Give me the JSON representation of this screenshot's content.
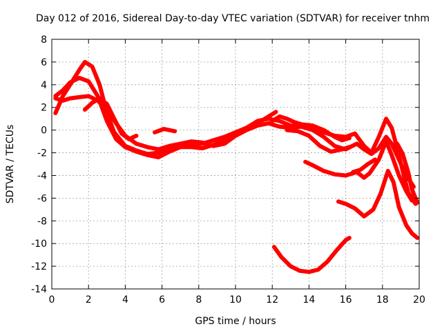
{
  "chart_data": {
    "type": "scatter",
    "title": "Day 012 of 2016, Sidereal Day-to-day VTEC variation (SDTVAR) for receiver tnhm",
    "xlabel": "GPS time / hours",
    "ylabel": "SDTVAR / TECUs",
    "xlim": [
      0,
      20
    ],
    "ylim": [
      -14,
      8
    ],
    "x_ticks": [
      "0",
      "2",
      "4",
      "6",
      "8",
      "10",
      "12",
      "14",
      "16",
      "18",
      "20"
    ],
    "y_ticks": [
      "8",
      "6",
      "4",
      "2",
      "0",
      "-2",
      "-4",
      "-6",
      "-8",
      "-10",
      "-12",
      "-14"
    ],
    "grid": true,
    "marker": "+",
    "color": "#ff0000",
    "series": [
      {
        "name": "track-1",
        "points": [
          [
            0.2,
            1.5
          ],
          [
            0.6,
            3.0
          ],
          [
            1.0,
            4.0
          ],
          [
            1.5,
            5.3
          ],
          [
            1.8,
            6.0
          ],
          [
            2.2,
            5.6
          ],
          [
            2.6,
            4.0
          ],
          [
            3.0,
            1.5
          ],
          [
            3.4,
            -0.2
          ],
          [
            4.0,
            -1.4
          ],
          [
            4.6,
            -1.8
          ],
          [
            5.2,
            -2.1
          ],
          [
            5.8,
            -2.0
          ],
          [
            6.4,
            -1.7
          ],
          [
            7.0,
            -1.4
          ],
          [
            7.6,
            -1.3
          ],
          [
            8.2,
            -1.2
          ],
          [
            8.8,
            -0.9
          ],
          [
            9.4,
            -0.6
          ],
          [
            10.0,
            -0.2
          ],
          [
            10.6,
            0.2
          ],
          [
            11.2,
            0.6
          ],
          [
            11.8,
            1.2
          ],
          [
            12.2,
            1.6
          ]
        ]
      },
      {
        "name": "track-2",
        "points": [
          [
            0.2,
            3.0
          ],
          [
            0.6,
            3.5
          ],
          [
            1.0,
            4.2
          ],
          [
            1.5,
            4.6
          ],
          [
            2.0,
            4.3
          ],
          [
            2.5,
            3.0
          ],
          [
            3.0,
            0.8
          ],
          [
            3.5,
            -0.8
          ],
          [
            4.0,
            -1.5
          ],
          [
            4.6,
            -1.9
          ],
          [
            5.2,
            -2.2
          ],
          [
            5.8,
            -2.4
          ],
          [
            6.4,
            -1.9
          ],
          [
            7.0,
            -1.5
          ],
          [
            7.6,
            -1.5
          ],
          [
            8.2,
            -1.6
          ],
          [
            8.8,
            -1.3
          ],
          [
            9.4,
            -0.9
          ],
          [
            10.0,
            -0.4
          ],
          [
            10.6,
            0.2
          ],
          [
            11.2,
            0.8
          ],
          [
            11.8,
            1.0
          ],
          [
            12.4,
            0.8
          ],
          [
            13.0,
            0.4
          ],
          [
            13.6,
            0.3
          ],
          [
            14.2,
            0.0
          ],
          [
            14.8,
            -0.6
          ],
          [
            15.4,
            -1.4
          ],
          [
            16.0,
            -1.7
          ],
          [
            16.6,
            -1.2
          ],
          [
            17.0,
            -1.7
          ],
          [
            17.4,
            -2.1
          ],
          [
            17.8,
            -1.6
          ],
          [
            18.2,
            -0.6
          ],
          [
            18.5,
            -1.2
          ],
          [
            18.9,
            -2.6
          ],
          [
            19.3,
            -4.0
          ],
          [
            19.7,
            -5.0
          ]
        ]
      },
      {
        "name": "track-3",
        "points": [
          [
            0.2,
            2.8
          ],
          [
            0.6,
            2.6
          ],
          [
            1.0,
            2.8
          ],
          [
            1.5,
            2.9
          ],
          [
            2.0,
            3.0
          ],
          [
            2.5,
            2.6
          ],
          [
            3.0,
            1.8
          ],
          [
            3.5,
            0.6
          ],
          [
            4.0,
            -0.5
          ],
          [
            4.6,
            -1.2
          ],
          [
            5.2,
            -1.5
          ],
          [
            5.8,
            -1.7
          ],
          [
            6.4,
            -1.4
          ],
          [
            7.0,
            -1.2
          ],
          [
            7.6,
            -1.0
          ],
          [
            8.2,
            -1.1
          ],
          [
            8.8,
            -1.4
          ],
          [
            9.4,
            -1.2
          ],
          [
            10.0,
            -0.5
          ],
          [
            10.6,
            0.0
          ],
          [
            11.2,
            0.4
          ],
          [
            11.8,
            0.6
          ],
          [
            12.4,
            0.3
          ],
          [
            13.0,
            0.2
          ],
          [
            13.6,
            0.3
          ],
          [
            14.2,
            0.2
          ],
          [
            14.8,
            -0.2
          ],
          [
            15.4,
            -0.5
          ],
          [
            16.0,
            -0.6
          ],
          [
            16.5,
            -0.3
          ],
          [
            17.0,
            -1.4
          ],
          [
            17.4,
            -2.0
          ],
          [
            17.8,
            -0.6
          ],
          [
            18.2,
            1.0
          ],
          [
            18.5,
            0.2
          ],
          [
            18.8,
            -1.6
          ],
          [
            19.1,
            -3.6
          ],
          [
            19.4,
            -5.5
          ],
          [
            19.8,
            -6.5
          ]
        ]
      },
      {
        "name": "track-4",
        "points": [
          [
            1.8,
            1.8
          ],
          [
            2.2,
            2.4
          ],
          [
            2.6,
            2.8
          ],
          [
            3.0,
            2.3
          ],
          [
            3.4,
            1.0
          ],
          [
            3.8,
            -0.3
          ],
          [
            4.2,
            -0.8
          ],
          [
            4.6,
            -0.5
          ]
        ]
      },
      {
        "name": "track-5",
        "points": [
          [
            5.6,
            -0.2
          ],
          [
            6.1,
            0.1
          ],
          [
            6.7,
            -0.1
          ]
        ]
      },
      {
        "name": "track-6",
        "points": [
          [
            12.0,
            0.8
          ],
          [
            12.4,
            1.2
          ],
          [
            12.8,
            1.0
          ],
          [
            13.2,
            0.7
          ],
          [
            13.6,
            0.5
          ],
          [
            14.2,
            0.4
          ],
          [
            14.8,
            0.0
          ],
          [
            15.4,
            -0.6
          ],
          [
            15.8,
            -0.9
          ],
          [
            16.2,
            -0.7
          ]
        ]
      },
      {
        "name": "track-7",
        "points": [
          [
            12.8,
            0.0
          ],
          [
            13.4,
            -0.1
          ],
          [
            14.0,
            -0.5
          ],
          [
            14.6,
            -1.4
          ],
          [
            15.2,
            -1.9
          ],
          [
            15.8,
            -1.7
          ],
          [
            16.2,
            -1.5
          ]
        ]
      },
      {
        "name": "track-8",
        "points": [
          [
            13.8,
            -2.8
          ],
          [
            14.2,
            -3.1
          ],
          [
            14.8,
            -3.6
          ],
          [
            15.4,
            -3.9
          ],
          [
            16.0,
            -4.0
          ],
          [
            16.6,
            -3.7
          ],
          [
            17.0,
            -4.2
          ],
          [
            17.3,
            -3.8
          ],
          [
            17.8,
            -2.6
          ],
          [
            18.2,
            -1.0
          ],
          [
            18.5,
            -2.2
          ],
          [
            18.9,
            -4.0
          ],
          [
            19.3,
            -5.4
          ],
          [
            19.6,
            -6.2
          ]
        ]
      },
      {
        "name": "track-9",
        "points": [
          [
            16.4,
            -3.7
          ],
          [
            16.8,
            -3.5
          ],
          [
            17.2,
            -3.0
          ],
          [
            17.6,
            -2.6
          ]
        ]
      },
      {
        "name": "track-10",
        "points": [
          [
            15.6,
            -6.3
          ],
          [
            16.0,
            -6.5
          ],
          [
            16.5,
            -6.9
          ],
          [
            17.0,
            -7.6
          ],
          [
            17.5,
            -7.0
          ],
          [
            17.9,
            -5.6
          ],
          [
            18.3,
            -3.6
          ],
          [
            18.6,
            -4.6
          ],
          [
            18.9,
            -6.8
          ],
          [
            19.3,
            -8.4
          ],
          [
            19.6,
            -9.1
          ],
          [
            19.9,
            -9.5
          ]
        ]
      },
      {
        "name": "track-11",
        "points": [
          [
            18.8,
            -1.2
          ],
          [
            19.1,
            -2.1
          ],
          [
            19.4,
            -3.7
          ],
          [
            19.6,
            -5.2
          ],
          [
            19.9,
            -6.4
          ]
        ]
      },
      {
        "name": "track-12",
        "points": [
          [
            12.1,
            -10.3
          ],
          [
            12.5,
            -11.2
          ],
          [
            13.0,
            -12.0
          ],
          [
            13.5,
            -12.4
          ],
          [
            14.0,
            -12.5
          ],
          [
            14.5,
            -12.3
          ],
          [
            15.0,
            -11.6
          ],
          [
            15.5,
            -10.6
          ],
          [
            16.0,
            -9.7
          ],
          [
            16.2,
            -9.5
          ]
        ]
      }
    ]
  }
}
